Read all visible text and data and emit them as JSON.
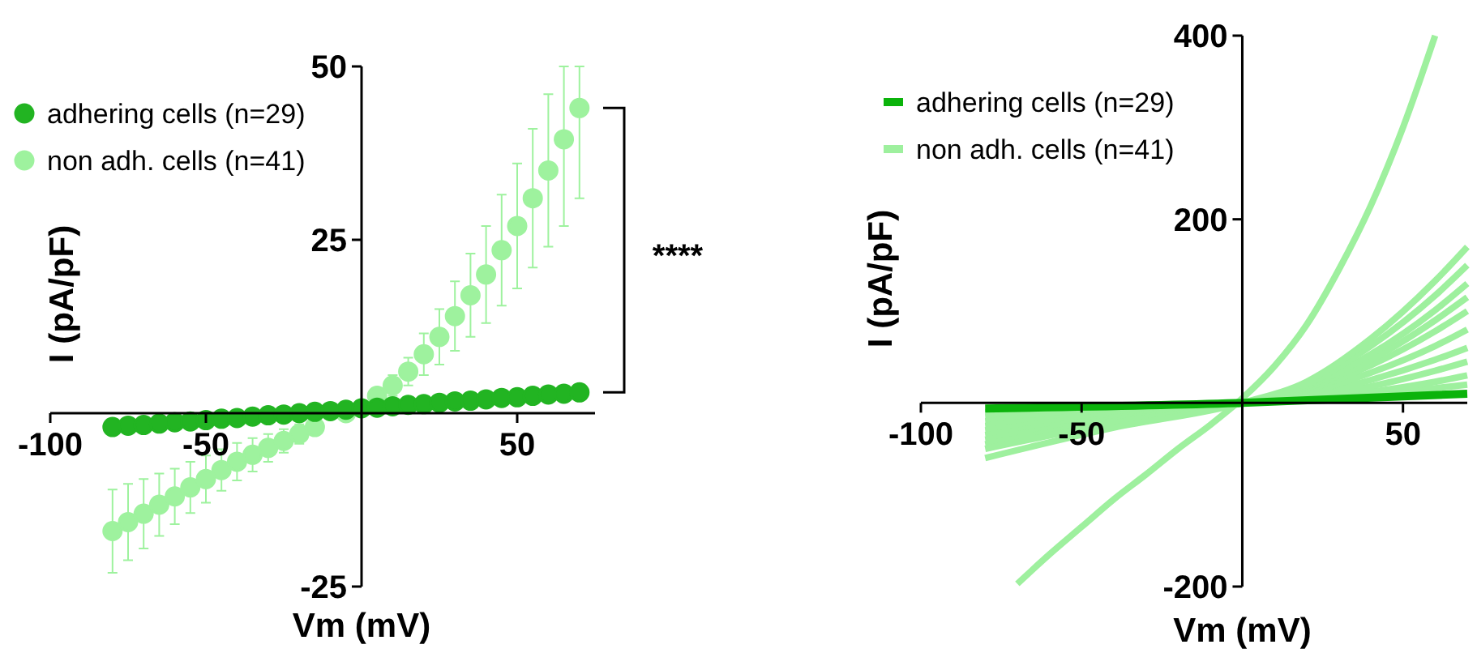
{
  "chart_data": [
    {
      "type": "scatter",
      "xlabel": "Vm (mV)",
      "ylabel": "I (pA/pF)",
      "xlim": [
        -100,
        75
      ],
      "ylim": [
        -25,
        50
      ],
      "xticks": [
        -100,
        -50,
        50
      ],
      "yticks": [
        -25,
        25,
        50
      ],
      "legend": "top left",
      "marker": "circle",
      "grid": false,
      "annotations": [
        "****"
      ],
      "x": [
        -80,
        -75,
        -70,
        -65,
        -60,
        -55,
        -50,
        -45,
        -40,
        -35,
        -30,
        -25,
        -20,
        -15,
        -10,
        -5,
        0,
        5,
        10,
        15,
        20,
        25,
        30,
        35,
        40,
        45,
        50,
        55,
        60,
        65,
        70
      ],
      "series": [
        {
          "name": "adhering cells (n=29)",
          "color": "#22b422",
          "values": [
            -2,
            -1.8,
            -1.7,
            -1.5,
            -1.3,
            -1.2,
            -1,
            -0.8,
            -0.7,
            -0.5,
            -0.3,
            -0.2,
            0,
            0.2,
            0.3,
            0.5,
            0.7,
            0.8,
            1,
            1.2,
            1.3,
            1.5,
            1.7,
            1.8,
            2,
            2.2,
            2.3,
            2.5,
            2.7,
            2.8,
            3
          ]
        },
        {
          "name": "non adh. cells (n=41)",
          "color": "#9ef29e",
          "values": [
            -17,
            -15.7,
            -14.5,
            -13.2,
            -12,
            -10.7,
            -9.5,
            -8.2,
            -7,
            -6,
            -5,
            -4,
            -3,
            -2,
            null,
            0,
            null,
            2.5,
            4,
            6,
            8.5,
            11,
            14,
            17,
            20,
            23.5,
            27,
            31,
            35,
            39.5,
            44
          ],
          "errors": [
            6,
            5.5,
            5,
            4.5,
            4,
            3.7,
            3.4,
            3,
            2.7,
            2.4,
            2,
            1.7,
            1.4,
            null,
            null,
            null,
            null,
            null,
            1.5,
            2,
            3,
            4,
            5,
            6,
            7,
            8,
            9,
            10,
            11,
            [
              27,
              50
            ],
            [
              31,
              50
            ]
          ]
        }
      ]
    },
    {
      "type": "line",
      "xlabel": "Vm (mV)",
      "ylabel": "I (pA/pF)",
      "xlim": [
        -100,
        70
      ],
      "ylim": [
        -200,
        400
      ],
      "xticks": [
        -100,
        -50,
        50
      ],
      "yticks": [
        -200,
        200,
        400
      ],
      "legend": "top left",
      "grid": false,
      "series": [
        {
          "name": "adhering cells (n=29)",
          "color": "#0bb30b",
          "x": [
            -80,
            0,
            70
          ],
          "values": [
            -6,
            0,
            10
          ]
        },
        {
          "name": "non adh. cells (n=41)",
          "color": "#9ef09e",
          "x": [
            -70,
            -60,
            -50,
            -40,
            -30,
            -20,
            -10,
            0,
            10,
            20,
            30,
            40,
            50,
            60
          ],
          "values": [
            -197,
            -165,
            -135,
            -105,
            -78,
            -50,
            -24,
            5,
            40,
            85,
            145,
            215,
            300,
            400
          ]
        },
        {
          "color": "#9ef09e",
          "x": [
            -80,
            -40,
            0,
            20,
            40,
            60,
            70
          ],
          "values": [
            -60,
            -27,
            0,
            23,
            70,
            133,
            170
          ]
        },
        {
          "color": "#9ef09e",
          "x": [
            -80,
            -40,
            0,
            20,
            40,
            60,
            70
          ],
          "values": [
            -50,
            -22,
            0,
            20,
            62,
            117,
            150
          ]
        },
        {
          "color": "#9ef09e",
          "x": [
            -80,
            -40,
            0,
            20,
            40,
            60,
            70
          ],
          "values": [
            -45,
            -20,
            0,
            18,
            53,
            101,
            130
          ]
        },
        {
          "color": "#9ef09e",
          "x": [
            -80,
            -40,
            0,
            20,
            40,
            60,
            70
          ],
          "values": [
            -40,
            -18,
            0,
            16,
            47,
            90,
            115
          ]
        },
        {
          "color": "#9ef09e",
          "x": [
            -80,
            -40,
            0,
            20,
            40,
            60,
            70
          ],
          "values": [
            -35,
            -16,
            0,
            14,
            41,
            78,
            100
          ]
        },
        {
          "color": "#9ef09e",
          "x": [
            -80,
            -40,
            0,
            20,
            40,
            60,
            70
          ],
          "values": [
            -30,
            -13,
            0,
            11,
            33,
            62,
            80
          ]
        },
        {
          "color": "#9ef09e",
          "x": [
            -80,
            -40,
            0,
            20,
            40,
            60,
            70
          ],
          "values": [
            -25,
            -11,
            0,
            8,
            25,
            47,
            60
          ]
        },
        {
          "color": "#9ef09e",
          "x": [
            -80,
            -40,
            0,
            20,
            40,
            60,
            70
          ],
          "values": [
            -20,
            -9,
            0,
            6,
            18,
            35,
            45
          ]
        },
        {
          "color": "#9ef09e",
          "x": [
            -80,
            -40,
            0,
            20,
            40,
            60,
            70
          ],
          "values": [
            -15,
            -7,
            0,
            4,
            12,
            23,
            30
          ]
        },
        {
          "color": "#9ef09e",
          "x": [
            -80,
            -40,
            0,
            20,
            40,
            60,
            70
          ],
          "values": [
            -10,
            -4,
            0,
            3,
            8,
            16,
            20
          ]
        }
      ]
    }
  ]
}
